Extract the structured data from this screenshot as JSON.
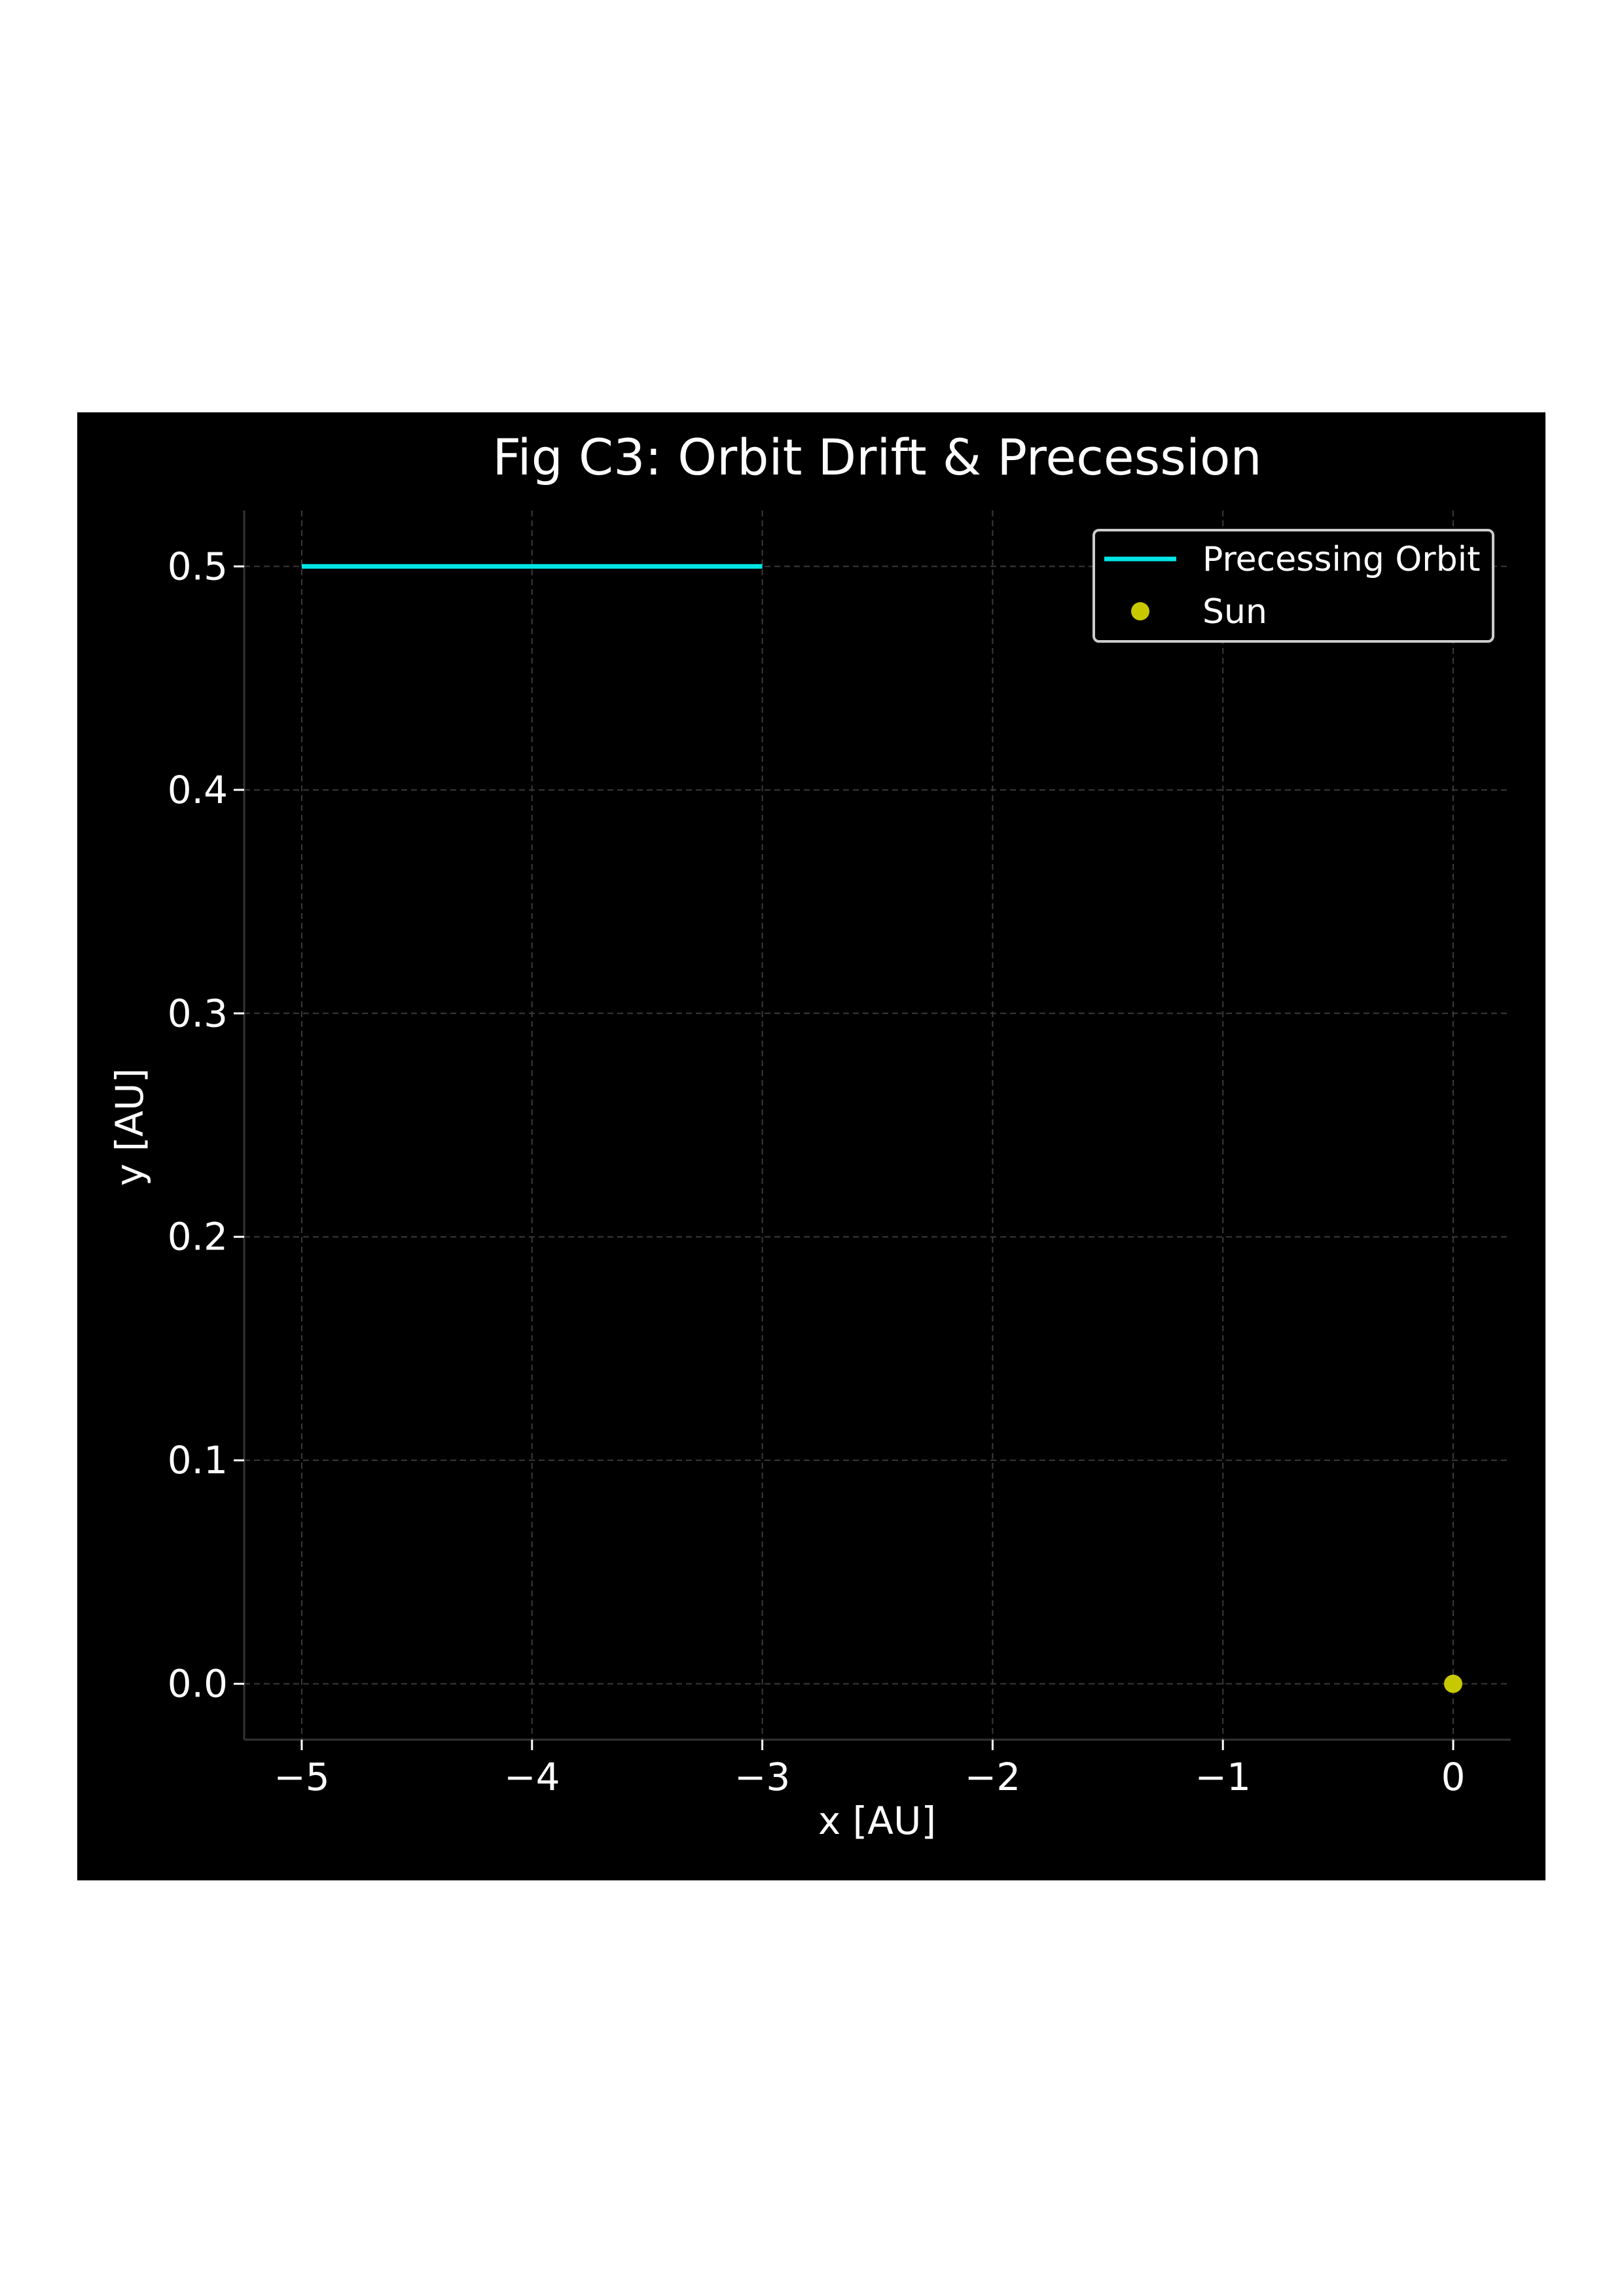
{
  "chart_data": {
    "type": "line",
    "title": "Fig C3: Orbit Drift & Precession",
    "xlabel": "x [AU]",
    "ylabel": "y [AU]",
    "xlim": [
      -5.25,
      0.25
    ],
    "ylim": [
      -0.025,
      0.525
    ],
    "xticks": [
      -5,
      -4,
      -3,
      -2,
      -1,
      0
    ],
    "xtick_labels": [
      "−5",
      "−4",
      "−3",
      "−2",
      "−1",
      "0"
    ],
    "yticks": [
      0.0,
      0.1,
      0.2,
      0.3,
      0.4,
      0.5
    ],
    "ytick_labels": [
      "0.0",
      "0.1",
      "0.2",
      "0.3",
      "0.4",
      "0.5"
    ],
    "grid": true,
    "legend_position": "top-right",
    "series": [
      {
        "name": "Precessing Orbit",
        "type": "line",
        "color": "#00e5e5",
        "x": [
          -5,
          -3
        ],
        "y": [
          0.5,
          0.5
        ]
      },
      {
        "name": "Sun",
        "type": "scatter",
        "color": "#c8c800",
        "x": [
          0
        ],
        "y": [
          0
        ]
      }
    ]
  },
  "colors": {
    "figure_background": "#000000",
    "page_background": "#ffffff",
    "grid": "#3a3a3a",
    "axis": "#333333",
    "text": "#ffffff"
  }
}
